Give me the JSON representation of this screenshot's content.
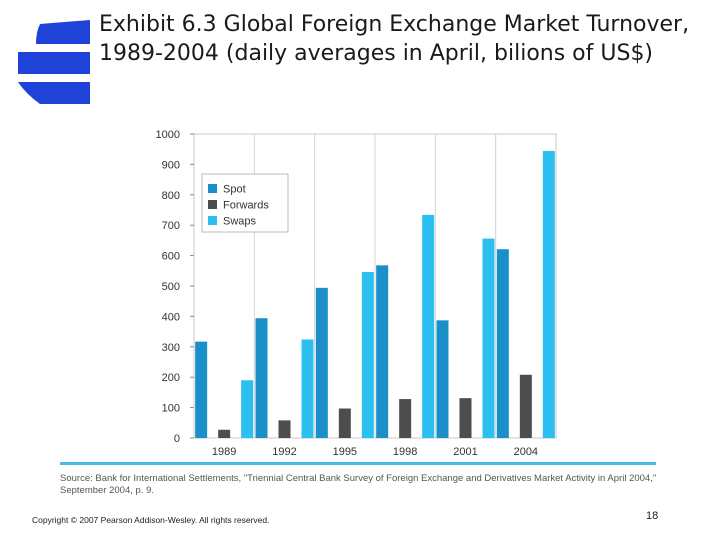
{
  "slide": {
    "title": "Exhibit 6.3 Global Foreign Exchange Market Turnover, 1989-2004 (daily averages in April, bilions of US$)",
    "source": "Source: Bank for International Settlements, \"Triennial Central Bank Survey of Foreign Exchange and Derivatives Market Activity in April 2004,\" September 2004, p. 9.",
    "copyright": "Copyright © 2007 Pearson Addison-Wesley. All rights reserved.",
    "page_number": "18",
    "logo_color": "#1f43d8",
    "rule_color": "#4ab8e8"
  },
  "chart_data": {
    "type": "bar",
    "categories": [
      "1989",
      "1992",
      "1995",
      "1998",
      "2001",
      "2004"
    ],
    "series": [
      {
        "name": "Spot",
        "values": [
          317,
          394,
          494,
          568,
          387,
          621
        ],
        "color": "#1a8fc8"
      },
      {
        "name": "Forwards",
        "values": [
          27,
          58,
          97,
          128,
          131,
          208
        ],
        "color": "#4d4d4d"
      },
      {
        "name": "Swaps",
        "values": [
          190,
          324,
          546,
          734,
          656,
          944
        ],
        "color": "#2cc0f0"
      }
    ],
    "ylim": [
      0,
      1000
    ],
    "yticks": [
      "0",
      "100",
      "200",
      "300",
      "400",
      "500",
      "600",
      "700",
      "800",
      "900",
      "1000"
    ],
    "grid": "vertical separators",
    "legend_position": "top-left",
    "xlabel": "",
    "ylabel": "",
    "title": ""
  }
}
